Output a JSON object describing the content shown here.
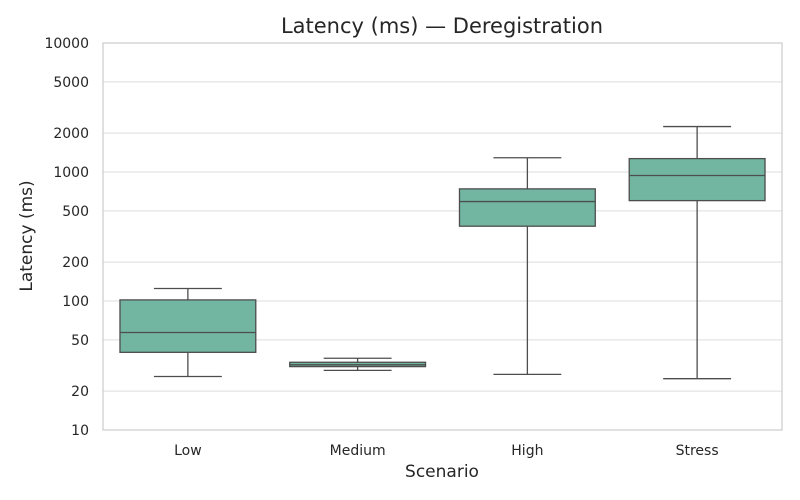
{
  "chart_data": {
    "type": "box",
    "title": "Latency (ms) — Deregistration",
    "xlabel": "Scenario",
    "ylabel": "Latency (ms)",
    "yscale": "log",
    "ylim": [
      10,
      10000
    ],
    "yticks": [
      10,
      20,
      50,
      100,
      200,
      500,
      1000,
      2000,
      5000,
      10000
    ],
    "ytick_labels": [
      "10",
      "20",
      "50",
      "100",
      "200",
      "500",
      "1000",
      "2000",
      "5000",
      "10000"
    ],
    "grid": true,
    "box_color": "#72b6a1",
    "line_color": "#4d4d4d",
    "categories": [
      "Low",
      "Medium",
      "High",
      "Stress"
    ],
    "boxes": [
      {
        "category": "Low",
        "whisker_low": 26,
        "q1": 40,
        "median": 57,
        "q3": 102,
        "whisker_high": 125
      },
      {
        "category": "Medium",
        "whisker_low": 29,
        "q1": 31,
        "median": 32,
        "q3": 33.5,
        "whisker_high": 36
      },
      {
        "category": "High",
        "whisker_low": 27,
        "q1": 380,
        "median": 590,
        "q3": 740,
        "whisker_high": 1290
      },
      {
        "category": "Stress",
        "whisker_low": 25,
        "q1": 600,
        "median": 940,
        "q3": 1270,
        "whisker_high": 2250
      }
    ]
  }
}
